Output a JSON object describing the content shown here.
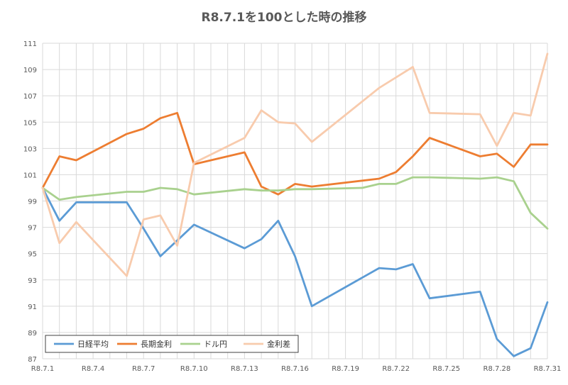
{
  "chart_data": {
    "type": "line",
    "title": "R8.7.1を100とした時の推移",
    "xlabel": "",
    "ylabel": "",
    "ylim": [
      87,
      111
    ],
    "yticks": [
      87,
      89,
      91,
      93,
      95,
      97,
      99,
      101,
      103,
      105,
      107,
      109,
      111
    ],
    "x_range": [
      1,
      31
    ],
    "x_tick_labels": [
      {
        "day": 1,
        "label": "R8.7.1"
      },
      {
        "day": 4,
        "label": "R8.7.4"
      },
      {
        "day": 7,
        "label": "R8.7.7"
      },
      {
        "day": 10,
        "label": "R8.7.10"
      },
      {
        "day": 13,
        "label": "R8.7.13"
      },
      {
        "day": 16,
        "label": "R8.7.16"
      },
      {
        "day": 19,
        "label": "R8.7.19"
      },
      {
        "day": 22,
        "label": "R8.7.22"
      },
      {
        "day": 25,
        "label": "R8.7.25"
      },
      {
        "day": 28,
        "label": "R8.7.28"
      },
      {
        "day": 31,
        "label": "R8.7.31"
      }
    ],
    "grid": true,
    "legend_position": "bottom-left",
    "series": [
      {
        "name": "日経平均",
        "color": "#5B9BD5",
        "points": [
          [
            1,
            100
          ],
          [
            2,
            97.5
          ],
          [
            3,
            98.9
          ],
          [
            6,
            98.9
          ],
          [
            7,
            96.9
          ],
          [
            8,
            94.8
          ],
          [
            10,
            97.2
          ],
          [
            13,
            95.4
          ],
          [
            14,
            96.1
          ],
          [
            15,
            97.5
          ],
          [
            16,
            94.8
          ],
          [
            17,
            91.0
          ],
          [
            21,
            93.9
          ],
          [
            22,
            93.8
          ],
          [
            23,
            94.2
          ],
          [
            24,
            91.6
          ],
          [
            27,
            92.1
          ],
          [
            28,
            88.5
          ],
          [
            29,
            87.2
          ],
          [
            30,
            87.8
          ],
          [
            31,
            91.3
          ]
        ]
      },
      {
        "name": "長期金利",
        "color": "#ED7D31",
        "points": [
          [
            1,
            100
          ],
          [
            2,
            102.4
          ],
          [
            3,
            102.1
          ],
          [
            6,
            104.1
          ],
          [
            7,
            104.5
          ],
          [
            8,
            105.3
          ],
          [
            9,
            105.7
          ],
          [
            10,
            101.8
          ],
          [
            13,
            102.7
          ],
          [
            14,
            100.1
          ],
          [
            15,
            99.5
          ],
          [
            16,
            100.3
          ],
          [
            17,
            100.1
          ],
          [
            21,
            100.7
          ],
          [
            22,
            101.2
          ],
          [
            23,
            102.4
          ],
          [
            24,
            103.8
          ],
          [
            27,
            102.4
          ],
          [
            28,
            102.6
          ],
          [
            29,
            101.6
          ],
          [
            30,
            103.3
          ],
          [
            31,
            103.3
          ]
        ]
      },
      {
        "name": "ドル円",
        "color": "#A9D18E",
        "points": [
          [
            1,
            100
          ],
          [
            2,
            99.1
          ],
          [
            3,
            99.3
          ],
          [
            6,
            99.7
          ],
          [
            7,
            99.7
          ],
          [
            8,
            100.0
          ],
          [
            9,
            99.9
          ],
          [
            10,
            99.5
          ],
          [
            13,
            99.9
          ],
          [
            14,
            99.8
          ],
          [
            15,
            99.8
          ],
          [
            16,
            99.9
          ],
          [
            17,
            99.9
          ],
          [
            20,
            100.0
          ],
          [
            21,
            100.3
          ],
          [
            22,
            100.3
          ],
          [
            23,
            100.8
          ],
          [
            24,
            100.8
          ],
          [
            27,
            100.7
          ],
          [
            28,
            100.8
          ],
          [
            29,
            100.5
          ],
          [
            30,
            98.1
          ],
          [
            31,
            96.9
          ]
        ]
      },
      {
        "name": "金利差",
        "color": "#F8CBAD",
        "points": [
          [
            1,
            100
          ],
          [
            2,
            95.8
          ],
          [
            3,
            97.4
          ],
          [
            6,
            93.3
          ],
          [
            7,
            97.6
          ],
          [
            8,
            97.9
          ],
          [
            9,
            95.6
          ],
          [
            10,
            101.9
          ],
          [
            13,
            103.8
          ],
          [
            14,
            105.9
          ],
          [
            15,
            105.0
          ],
          [
            16,
            104.9
          ],
          [
            17,
            103.5
          ],
          [
            21,
            107.6
          ],
          [
            23,
            109.2
          ],
          [
            24,
            105.7
          ],
          [
            27,
            105.6
          ],
          [
            28,
            103.2
          ],
          [
            29,
            105.7
          ],
          [
            30,
            105.5
          ],
          [
            31,
            110.2
          ]
        ]
      }
    ]
  }
}
